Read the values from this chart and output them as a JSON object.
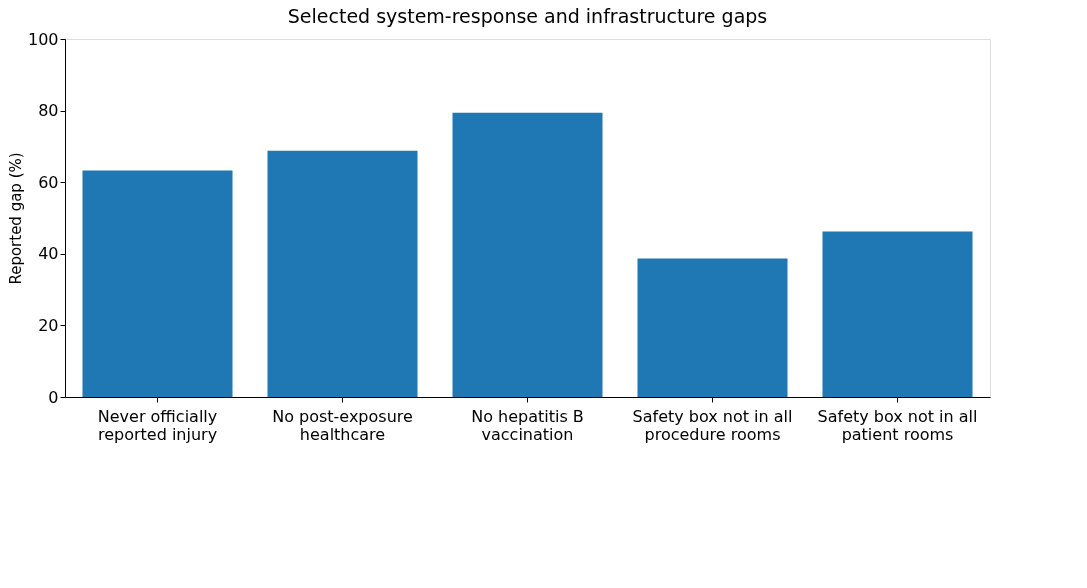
{
  "chart_data": {
    "type": "bar",
    "title": "Selected system-response and infrastructure gaps",
    "ylabel": "Reported gap (%)",
    "categories": [
      "Never officially\nreported injury",
      "No post-exposure\nhealthcare",
      "No hepatitis B\nvaccination",
      "Safety box not in all\nprocedure rooms",
      "Safety box not in all\npatient rooms"
    ],
    "values": [
      63.3,
      68.8,
      79.4,
      38.7,
      46.2
    ],
    "color": "#1f77b4",
    "ylim": [
      0,
      100
    ],
    "yticks": [
      0,
      20,
      40,
      60,
      80,
      100
    ],
    "grid": false
  }
}
